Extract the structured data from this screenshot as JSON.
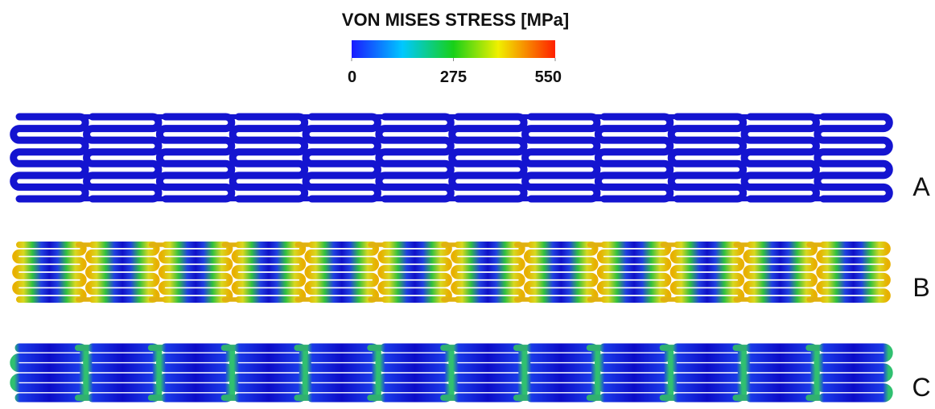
{
  "colorbar": {
    "title": "VON MISES STRESS [MPa]",
    "range": [
      0,
      550
    ],
    "ticks": [
      0,
      275,
      550
    ]
  },
  "panels": [
    {
      "label": "A"
    },
    {
      "label": "B"
    },
    {
      "label": "C"
    }
  ]
}
